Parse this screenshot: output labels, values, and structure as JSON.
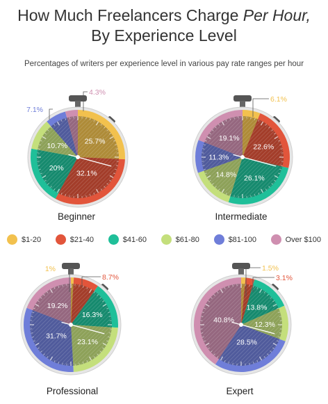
{
  "title": {
    "line1_prefix": "How Much Freelancers Charge ",
    "line1_em": "Per Hour,",
    "line2": "By Experience Level"
  },
  "subtitle": "Percentages of writers per experience level in various pay rate ranges per hour",
  "colors": {
    "$1-20": "#f2c14e",
    "$21-40": "#e2553b",
    "$41-60": "#1fbf99",
    "$61-80": "#c4df7c",
    "$81-100": "#6f7ed9",
    "Over $100": "#cf8fb0"
  },
  "legend": [
    "$1-20",
    "$21-40",
    "$41-60",
    "$61-80",
    "$81-100",
    "Over $100"
  ],
  "chart_data": [
    {
      "type": "pie",
      "title": "Beginner",
      "categories": [
        "$1-20",
        "$21-40",
        "$41-60",
        "$61-80",
        "$81-100",
        "Over $100"
      ],
      "values": [
        25.7,
        32.1,
        20,
        10.7,
        7.1,
        4.3
      ],
      "labels": [
        "25.7%",
        "32.1%",
        "20%",
        "10.7%",
        "7.1%",
        "4.3%"
      ]
    },
    {
      "type": "pie",
      "title": "Intermediate",
      "categories": [
        "$1-20",
        "$21-40",
        "$41-60",
        "$61-80",
        "$81-100",
        "Over $100"
      ],
      "values": [
        6.1,
        22.6,
        26.1,
        14.8,
        11.3,
        19.1
      ],
      "labels": [
        "6.1%",
        "22.6%",
        "26.1%",
        "14.8%",
        "11.3%",
        "19.1%"
      ]
    },
    {
      "type": "pie",
      "title": "Professional",
      "categories": [
        "$1-20",
        "$21-40",
        "$41-60",
        "$61-80",
        "$81-100",
        "Over $100"
      ],
      "values": [
        1,
        8.7,
        16.3,
        23.1,
        31.7,
        19.2
      ],
      "labels": [
        "1%",
        "8.7%",
        "16.3%",
        "23.1%",
        "31.7%",
        "19.2%"
      ]
    },
    {
      "type": "pie",
      "title": "Expert",
      "categories": [
        "$1-20",
        "$21-40",
        "$41-60",
        "$61-80",
        "$81-100",
        "Over $100"
      ],
      "values": [
        1.5,
        3.1,
        13.8,
        12.3,
        28.5,
        40.8
      ],
      "labels": [
        "1.5%",
        "3.1%",
        "13.8%",
        "12.3%",
        "28.5%",
        "40.8%"
      ]
    }
  ]
}
